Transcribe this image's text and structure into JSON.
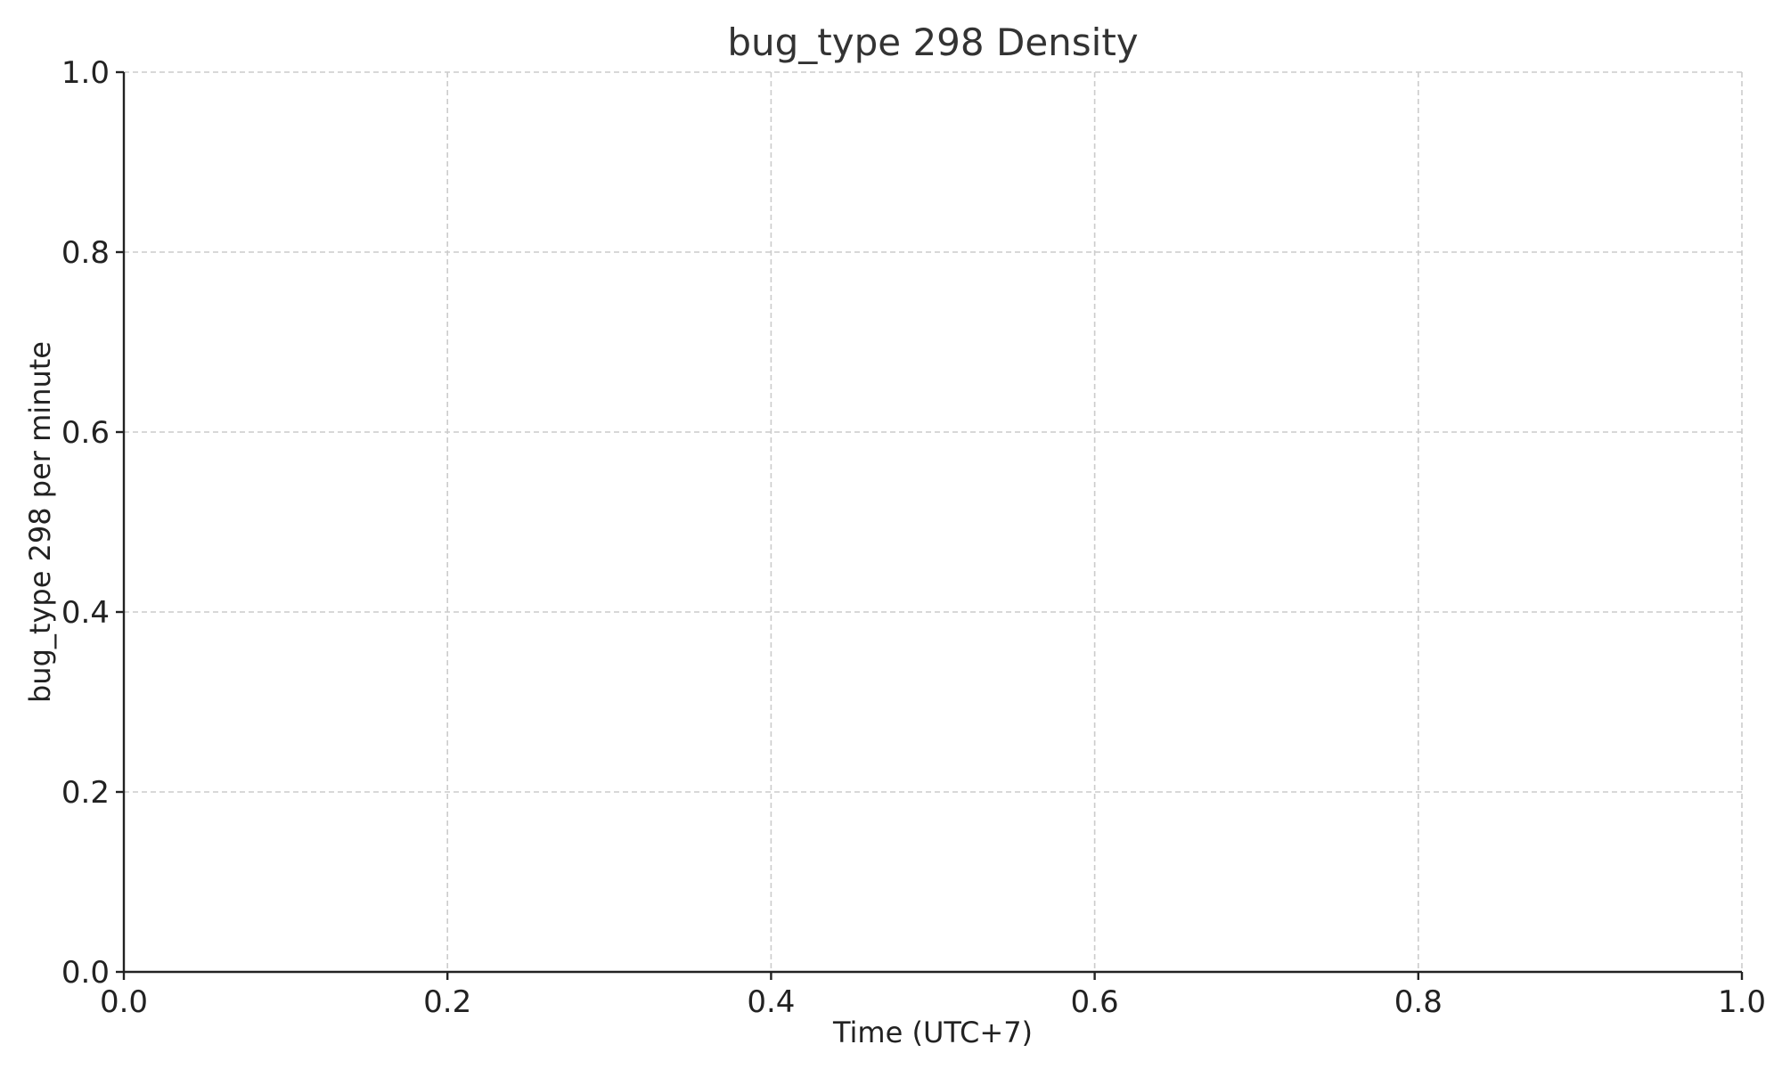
{
  "chart_data": {
    "type": "line",
    "title": "bug_type 298 Density",
    "xlabel": "Time (UTC+7)",
    "ylabel": "bug_type 298 per minute",
    "xlim": [
      0.0,
      1.0
    ],
    "ylim": [
      0.0,
      1.0
    ],
    "xticks": [
      0.0,
      0.2,
      0.4,
      0.6,
      0.8,
      1.0
    ],
    "yticks": [
      0.0,
      0.2,
      0.4,
      0.6,
      0.8,
      1.0
    ],
    "xtick_labels": [
      "0.0",
      "0.2",
      "0.4",
      "0.6",
      "0.8",
      "1.0"
    ],
    "ytick_labels": [
      "0.0",
      "0.2",
      "0.4",
      "0.6",
      "0.8",
      "1.0"
    ],
    "grid": true,
    "series": []
  }
}
